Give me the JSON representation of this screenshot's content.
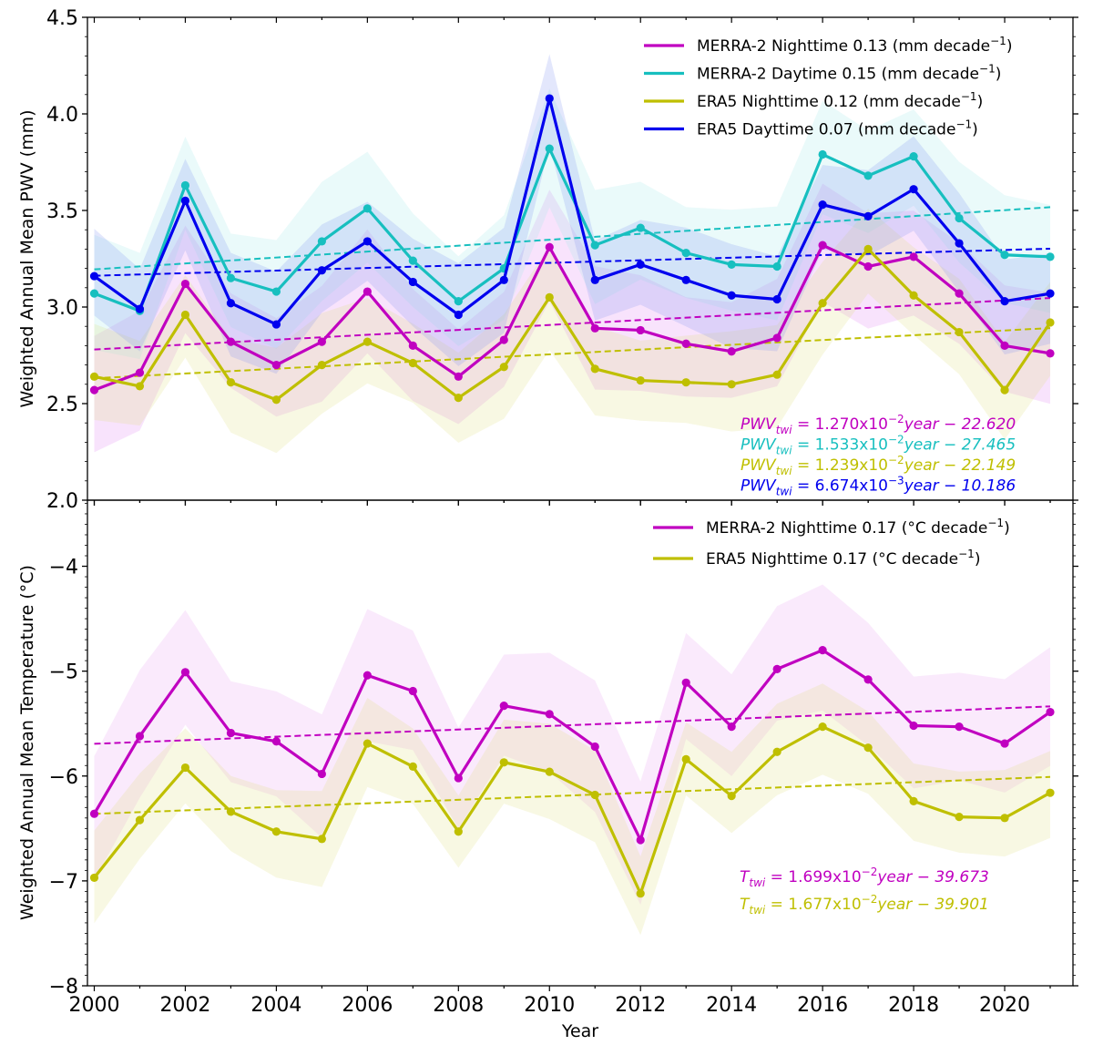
{
  "chart_data": [
    {
      "type": "line",
      "panel": "top",
      "title": "",
      "xlabel": "",
      "ylabel": "Weighted Annual Mean PWV (mm)",
      "xlim": [
        1999.85,
        2021.5
      ],
      "ylim": [
        2.0,
        4.5
      ],
      "yticks": [
        2.0,
        2.5,
        3.0,
        3.5,
        4.0,
        4.5
      ],
      "ytick_labels": [
        "2.0",
        "2.5",
        "3.0",
        "3.5",
        "4.0",
        "4.5"
      ],
      "grid": false,
      "legend_position": "top-right",
      "x": [
        2000,
        2001,
        2002,
        2003,
        2004,
        2005,
        2006,
        2007,
        2008,
        2009,
        2010,
        2011,
        2012,
        2013,
        2014,
        2015,
        2016,
        2017,
        2018,
        2019,
        2020,
        2021
      ],
      "series": [
        {
          "name": "MERRA-2 Nighttime",
          "legend_prefix": "MERRA-2 Nighttime 0.13 (mm decade",
          "color": "#c000c0",
          "band_color": "#e080f0",
          "band_halfwidth": 0.28,
          "values": [
            2.57,
            2.66,
            3.12,
            2.82,
            2.7,
            2.82,
            3.08,
            2.8,
            2.64,
            2.83,
            3.31,
            2.89,
            2.88,
            2.81,
            2.77,
            2.84,
            3.32,
            3.21,
            3.26,
            3.07,
            2.8,
            2.76
          ],
          "trend": {
            "slope": 0.0127,
            "intercept": -22.62
          },
          "equation": {
            "lhs": "PWV",
            "sub": "twi",
            "coef": " = 1.270x10",
            "exp": "−2",
            "rest": "year − 22.620"
          }
        },
        {
          "name": "MERRA-2 Daytime",
          "legend_prefix": "MERRA-2 Daytime  0.15 (mm decade",
          "color": "#17bfbf",
          "band_color": "#a0e8e8",
          "band_halfwidth": 0.27,
          "values": [
            3.07,
            2.98,
            3.63,
            3.15,
            3.08,
            3.34,
            3.51,
            3.24,
            3.03,
            3.2,
            3.82,
            3.32,
            3.41,
            3.28,
            3.22,
            3.21,
            3.79,
            3.68,
            3.78,
            3.46,
            3.27,
            3.26
          ],
          "trend": {
            "slope": 0.01533,
            "intercept": -27.465
          },
          "equation": {
            "lhs": "PWV",
            "sub": "twi",
            "coef": " = 1.533x10",
            "exp": "−2",
            "rest": "year − 27.465"
          }
        },
        {
          "name": "ERA5 Nighttime",
          "legend_prefix": "ERA5 Nighttime 0.12 (mm decade",
          "color": "#bfbf00",
          "band_color": "#e0e080",
          "band_halfwidth": 0.24,
          "values": [
            2.64,
            2.59,
            2.96,
            2.61,
            2.52,
            2.7,
            2.82,
            2.71,
            2.53,
            2.69,
            3.05,
            2.68,
            2.62,
            2.61,
            2.6,
            2.65,
            3.02,
            3.3,
            3.06,
            2.87,
            2.57,
            2.92
          ],
          "trend": {
            "slope": 0.01239,
            "intercept": -22.149
          },
          "equation": {
            "lhs": "PWV",
            "sub": "twi",
            "coef": " = 1.239x10",
            "exp": "−2",
            "rest": "year − 22.149"
          }
        },
        {
          "name": "ERA5 Daytime",
          "legend_prefix": "ERA5 Dayttime 0.07 (mm decade",
          "color": "#0000ee",
          "band_color": "#8090f0",
          "band_halfwidth": 0.24,
          "values": [
            3.16,
            2.99,
            3.55,
            3.02,
            2.91,
            3.19,
            3.34,
            3.13,
            2.96,
            3.14,
            4.08,
            3.14,
            3.22,
            3.14,
            3.06,
            3.04,
            3.53,
            3.47,
            3.61,
            3.33,
            3.03,
            3.07
          ],
          "trend": {
            "slope": 0.006674,
            "intercept": -10.186
          },
          "equation": {
            "lhs": "PWV",
            "sub": "twi",
            "coef": " = 6.674x10",
            "exp": "−3",
            "rest": "year − 10.186"
          }
        }
      ]
    },
    {
      "type": "line",
      "panel": "bottom",
      "title": "",
      "xlabel": "Year",
      "ylabel": "Weighted Annual Mean Temperature (°C)",
      "xlim": [
        1999.85,
        2021.5
      ],
      "ylim": [
        -8.0,
        -3.37
      ],
      "yticks": [
        -8,
        -7,
        -6,
        -5,
        -4
      ],
      "ytick_labels": [
        "−8",
        "−7",
        "−6",
        "−5",
        "−4"
      ],
      "xticks": [
        2000,
        2002,
        2004,
        2006,
        2008,
        2010,
        2012,
        2014,
        2016,
        2018,
        2020
      ],
      "xtick_labels": [
        "2000",
        "2002",
        "2004",
        "2006",
        "2008",
        "2010",
        "2012",
        "2014",
        "2016",
        "2018",
        "2020"
      ],
      "grid": false,
      "legend_position": "top-right",
      "x": [
        2000,
        2001,
        2002,
        2003,
        2004,
        2005,
        2006,
        2007,
        2008,
        2009,
        2010,
        2011,
        2012,
        2013,
        2014,
        2015,
        2016,
        2017,
        2018,
        2019,
        2020,
        2021
      ],
      "series": [
        {
          "name": "MERRA-2 Nighttime",
          "legend_prefix": "MERRA-2 Nighttime 0.17 (°C decade",
          "color": "#c000c0",
          "band_color": "#e8a0f0",
          "band_halfwidth": 0.55,
          "values": [
            -6.36,
            -5.62,
            -5.01,
            -5.59,
            -5.67,
            -5.98,
            -5.04,
            -5.19,
            -6.02,
            -5.33,
            -5.41,
            -5.72,
            -6.61,
            -5.11,
            -5.53,
            -4.98,
            -4.8,
            -5.08,
            -5.52,
            -5.53,
            -5.69,
            -5.39
          ],
          "trend": {
            "slope": 0.01699,
            "intercept": -39.673
          },
          "equation": {
            "lhs": "T",
            "sub": "twi",
            "coef": " = 1.699x10",
            "exp": "−2",
            "rest": "year − 39.673"
          }
        },
        {
          "name": "ERA5 Nighttime",
          "legend_prefix": "ERA5 Nighttime 0.17 (°C decade",
          "color": "#bfbf00",
          "band_color": "#e0e080",
          "band_halfwidth": 0.4,
          "values": [
            -6.97,
            -6.42,
            -5.92,
            -6.34,
            -6.53,
            -6.6,
            -5.69,
            -5.91,
            -6.53,
            -5.87,
            -5.96,
            -6.18,
            -7.12,
            -5.84,
            -6.19,
            -5.77,
            -5.53,
            -5.73,
            -6.24,
            -6.39,
            -6.4,
            -6.16
          ],
          "trend": {
            "slope": 0.01677,
            "intercept": -39.901
          },
          "equation": {
            "lhs": "T",
            "sub": "twi",
            "coef": " = 1.677x10",
            "exp": "−2",
            "rest": "year − 39.901"
          }
        }
      ]
    }
  ],
  "legend_suffix_sup": "−1",
  "legend_suffix_close": ")"
}
